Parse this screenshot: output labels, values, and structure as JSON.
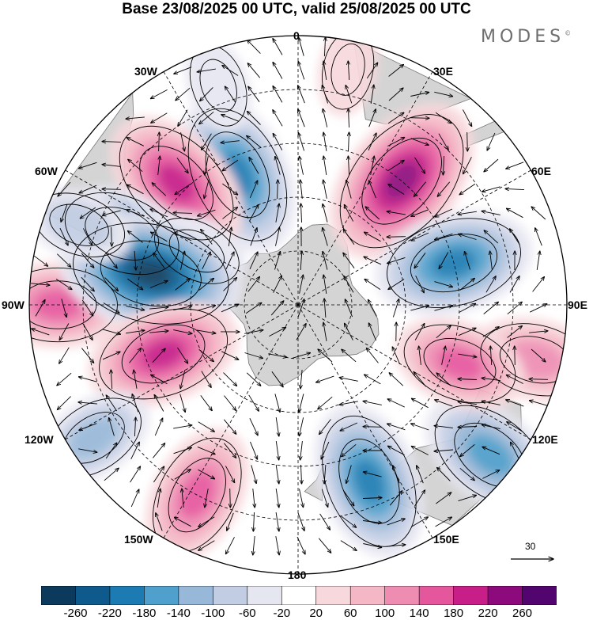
{
  "title": "Base 23/08/2025 00 UTC, valid 25/08/2025 00 UTC",
  "brand": "MODES",
  "brand_mark": "©",
  "longitude_labels": {
    "l0": "0",
    "l30e": "30E",
    "l60e": "60E",
    "l90e": "90E",
    "l120e": "120E",
    "l150e": "150E",
    "l180": "180",
    "l150w": "150W",
    "l120w": "120W",
    "l90w": "90W",
    "l60w": "60W",
    "l30w": "30W"
  },
  "vector_scale": {
    "label": "30",
    "icon": "arrow-right-icon"
  },
  "colorbar": {
    "levels": [
      "-260",
      "-220",
      "-180",
      "-140",
      "-100",
      "-60",
      "-20",
      "20",
      "60",
      "100",
      "140",
      "180",
      "220",
      "260"
    ],
    "colors": [
      "#0b3a5c",
      "#0f5a8c",
      "#1b7bb2",
      "#4fa0cc",
      "#97b8d8",
      "#c2cde4",
      "#e6e6f1",
      "#ffffff",
      "#f7d8dc",
      "#f4b7c5",
      "#ee8cb2",
      "#e5579d",
      "#c71e88",
      "#8c0a7c",
      "#52056e"
    ]
  },
  "map": {
    "colors": {
      "land": "#d4d4d4",
      "coast": "#777777",
      "grid": "#000000"
    },
    "anomalies": [
      {
        "lon": -25,
        "lat": -50,
        "value": -210
      },
      {
        "lon": 40,
        "lat": -45,
        "value": 250
      },
      {
        "lon": -45,
        "lat": -42,
        "value": 200
      },
      {
        "lon": -68,
        "lat": -37,
        "value": -150
      },
      {
        "lon": -62,
        "lat": -58,
        "value": -70
      },
      {
        "lon": -90,
        "lat": -23,
        "value": 150
      },
      {
        "lon": -78,
        "lat": -48,
        "value": -260
      },
      {
        "lon": -110,
        "lat": -50,
        "value": 190
      },
      {
        "lon": -123,
        "lat": -22,
        "value": -110
      },
      {
        "lon": -152,
        "lat": -30,
        "value": 160
      },
      {
        "lon": 158,
        "lat": -37,
        "value": -200
      },
      {
        "lon": 128,
        "lat": -22,
        "value": -170
      },
      {
        "lon": 103,
        "lat": -22,
        "value": 130
      },
      {
        "lon": 110,
        "lat": -42,
        "value": 140
      },
      {
        "lon": 75,
        "lat": -45,
        "value": -200
      },
      {
        "lon": 12,
        "lat": -23,
        "value": 40
      },
      {
        "lon": -20,
        "lat": -25,
        "value": -50
      },
      {
        "lon": -70,
        "lat": -25,
        "value": -80
      }
    ]
  }
}
